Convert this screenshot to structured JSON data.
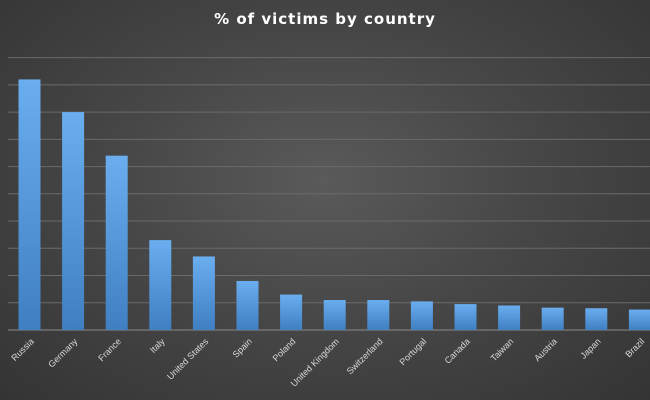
{
  "chart_data": {
    "type": "bar",
    "title": "% of victims  by country",
    "xlabel": "",
    "ylabel": "",
    "categories": [
      "Russia",
      "Germany",
      "France",
      "Italy",
      "United States",
      "Spain",
      "Poland",
      "United Kingdom",
      "Switzerland",
      "Portugal",
      "Canada",
      "Taiwan",
      "Austria",
      "Japan",
      "Brazil"
    ],
    "values": [
      9.2,
      8.0,
      6.4,
      3.3,
      2.7,
      1.8,
      1.3,
      1.1,
      1.1,
      1.05,
      0.95,
      0.9,
      0.82,
      0.8,
      0.75
    ],
    "ylim": [
      0,
      10.5
    ],
    "grid": true,
    "bar_color": "#5b9bd5"
  }
}
